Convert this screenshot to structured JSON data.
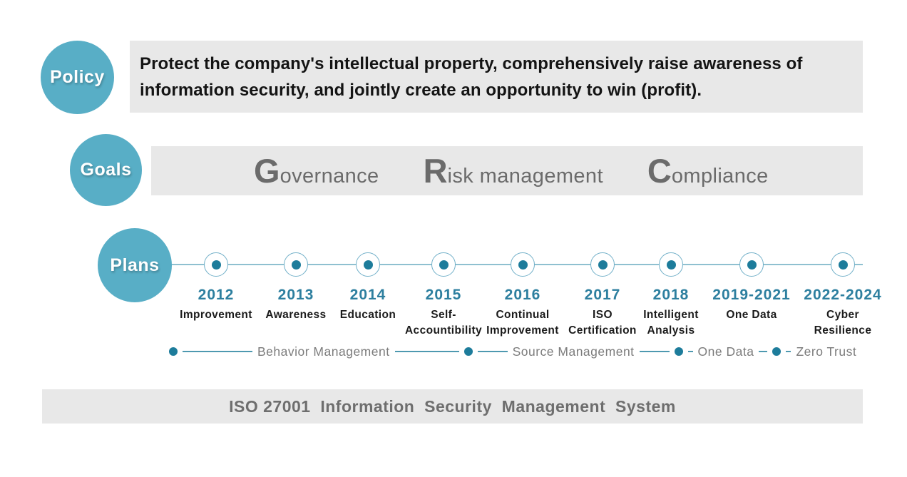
{
  "colors": {
    "accent_teal": "#58AEC6",
    "dot_teal": "#1D7C9B",
    "year_teal": "#2D7F9F",
    "bar_gray": "#E8E8E8",
    "muted_gray_text": "#6B6B6B"
  },
  "policy": {
    "label": "Policy",
    "lines": [
      "Protect the company's intellectual property, comprehensively raise awareness of",
      "information security, and jointly create an opportunity to win (profit)."
    ]
  },
  "goals": {
    "label": "Goals",
    "items": [
      {
        "initial": "G",
        "rest": "overnance"
      },
      {
        "initial": "R",
        "rest": "isk management"
      },
      {
        "initial": "C",
        "rest": "ompliance"
      }
    ]
  },
  "plans": {
    "label": "Plans",
    "milestones": [
      {
        "year": "2012",
        "label": "Improvement"
      },
      {
        "year": "2013",
        "label": "Awareness"
      },
      {
        "year": "2014",
        "label": "Education"
      },
      {
        "year": "2015",
        "label": "Self-\nAccountibility"
      },
      {
        "year": "2016",
        "label": "Continual\nImprovement"
      },
      {
        "year": "2017",
        "label": "ISO\nCertification"
      },
      {
        "year": "2018",
        "label": "Intelligent\nAnalysis"
      },
      {
        "year": "2019-2021",
        "label": "One Data"
      },
      {
        "year": "2022-2024",
        "label": "Cyber\nResilience"
      }
    ],
    "phases": [
      {
        "label": "Behavior Management"
      },
      {
        "label": "Source Management"
      },
      {
        "label": "One Data"
      },
      {
        "label": "Zero Trust"
      }
    ]
  },
  "footer": {
    "text": "ISO 27001  Information  Security  Management  System"
  }
}
